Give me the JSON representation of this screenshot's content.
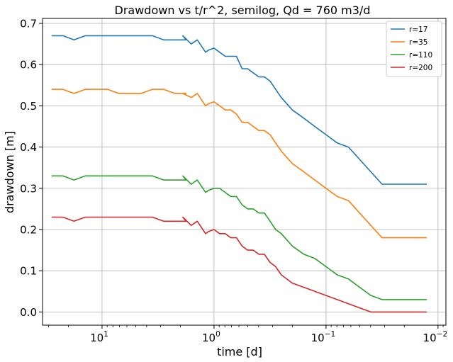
{
  "chart_data": {
    "type": "line",
    "title": "Drawdown vs t/r^2, semilog, Qd = 760 m3/d",
    "xlabel": "time [d]",
    "ylabel": "drawdown [m]",
    "x_scale": "log",
    "x_inverted": true,
    "xlim": [
      34,
      0.0085
    ],
    "ylim": [
      -0.032,
      0.712
    ],
    "grid": true,
    "legend_position": "top-right",
    "x_ticks": [
      {
        "value": 10,
        "base": "10",
        "exp": "1"
      },
      {
        "value": 1,
        "base": "10",
        "exp": "0"
      },
      {
        "value": 0.1,
        "base": "10",
        "exp": "−1"
      },
      {
        "value": 0.01,
        "base": "10",
        "exp": "−2"
      }
    ],
    "y_ticks": [
      {
        "value": 0.0,
        "label": "0.0"
      },
      {
        "value": 0.1,
        "label": "0.1"
      },
      {
        "value": 0.2,
        "label": "0.2"
      },
      {
        "value": 0.3,
        "label": "0.3"
      },
      {
        "value": 0.4,
        "label": "0.4"
      },
      {
        "value": 0.5,
        "label": "0.5"
      },
      {
        "value": 0.6,
        "label": "0.6"
      },
      {
        "value": 0.7,
        "label": "0.7"
      }
    ],
    "x": [
      28.2,
      22.4,
      17.8,
      14.1,
      11.2,
      8.91,
      7.08,
      5.62,
      4.47,
      3.55,
      2.82,
      2.24,
      1.78,
      1.9,
      1.6,
      1.41,
      1.19,
      1.12,
      1.0,
      0.891,
      0.794,
      0.708,
      0.631,
      0.562,
      0.501,
      0.447,
      0.398,
      0.355,
      0.316,
      0.282,
      0.251,
      0.2,
      0.158,
      0.126,
      0.1,
      0.0794,
      0.0631,
      0.0501,
      0.0398,
      0.0316,
      0.0251,
      0.02,
      0.0158,
      0.0126
    ],
    "series": [
      {
        "name": "r=17",
        "color": "#1f77b4",
        "values": [
          0.67,
          0.67,
          0.66,
          0.67,
          0.67,
          0.67,
          0.67,
          0.67,
          0.67,
          0.67,
          0.66,
          0.66,
          0.66,
          0.67,
          0.65,
          0.66,
          0.63,
          0.635,
          0.64,
          0.63,
          0.62,
          0.62,
          0.62,
          0.59,
          0.59,
          0.58,
          0.57,
          0.57,
          0.56,
          0.54,
          0.52,
          0.49,
          0.47,
          0.45,
          0.43,
          0.41,
          0.4,
          0.37,
          0.34,
          0.31,
          0.31,
          0.31,
          0.31,
          0.31
        ]
      },
      {
        "name": "r=35",
        "color": "#ff7f0e",
        "values": [
          0.54,
          0.54,
          0.53,
          0.54,
          0.54,
          0.54,
          0.53,
          0.53,
          0.53,
          0.54,
          0.54,
          0.53,
          0.53,
          0.53,
          0.52,
          0.53,
          0.5,
          0.505,
          0.51,
          0.5,
          0.49,
          0.49,
          0.48,
          0.46,
          0.46,
          0.45,
          0.44,
          0.44,
          0.43,
          0.41,
          0.39,
          0.36,
          0.34,
          0.32,
          0.3,
          0.28,
          0.27,
          0.24,
          0.21,
          0.18,
          0.18,
          0.18,
          0.18,
          0.18
        ]
      },
      {
        "name": "r=110",
        "color": "#2ca02c",
        "values": [
          0.33,
          0.33,
          0.32,
          0.33,
          0.33,
          0.33,
          0.33,
          0.33,
          0.33,
          0.33,
          0.32,
          0.32,
          0.32,
          0.33,
          0.31,
          0.32,
          0.29,
          0.295,
          0.3,
          0.3,
          0.29,
          0.28,
          0.28,
          0.26,
          0.25,
          0.25,
          0.24,
          0.24,
          0.22,
          0.2,
          0.19,
          0.16,
          0.14,
          0.13,
          0.11,
          0.09,
          0.08,
          0.06,
          0.04,
          0.03,
          0.03,
          0.03,
          0.03,
          0.03
        ]
      },
      {
        "name": "r=200",
        "color": "#d62728",
        "values": [
          0.23,
          0.23,
          0.22,
          0.23,
          0.23,
          0.23,
          0.23,
          0.23,
          0.23,
          0.23,
          0.22,
          0.22,
          0.22,
          0.23,
          0.21,
          0.22,
          0.19,
          0.195,
          0.2,
          0.19,
          0.19,
          0.18,
          0.18,
          0.16,
          0.15,
          0.15,
          0.14,
          0.14,
          0.12,
          0.11,
          0.09,
          0.07,
          0.06,
          0.05,
          0.04,
          0.03,
          0.02,
          0.01,
          0.0,
          0.0,
          0.0,
          0.0,
          0.0,
          0.0
        ]
      }
    ]
  }
}
